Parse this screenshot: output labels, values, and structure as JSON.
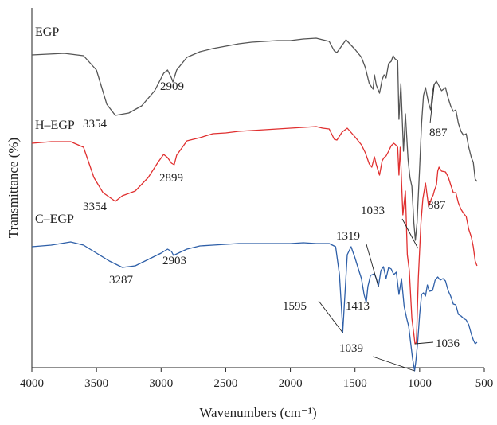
{
  "chart_data": {
    "type": "line",
    "xlabel": "Wavenumbers (cm⁻¹)",
    "ylabel": "Transmittance (%)",
    "xlim": [
      4000,
      500
    ],
    "x_reversed": true,
    "xticks": [
      4000,
      3500,
      3000,
      2500,
      2000,
      1500,
      1000,
      500
    ],
    "y_ticks_shown": false,
    "grid": false,
    "legend": "none (series labelled directly on the plot, upper-left of each trace)",
    "series": [
      {
        "name": "EGP",
        "color": "#555555",
        "points": [
          [
            4000,
            59
          ],
          [
            3750,
            57
          ],
          [
            3600,
            60
          ],
          [
            3500,
            78
          ],
          [
            3420,
            121
          ],
          [
            3354,
            135
          ],
          [
            3250,
            132
          ],
          [
            3150,
            123
          ],
          [
            3050,
            104
          ],
          [
            2980,
            82
          ],
          [
            2950,
            78
          ],
          [
            2920,
            88
          ],
          [
            2909,
            93
          ],
          [
            2880,
            78
          ],
          [
            2800,
            62
          ],
          [
            2700,
            55
          ],
          [
            2600,
            51
          ],
          [
            2500,
            48
          ],
          [
            2400,
            45
          ],
          [
            2300,
            43
          ],
          [
            2200,
            42
          ],
          [
            2100,
            41
          ],
          [
            2000,
            41
          ],
          [
            1900,
            39
          ],
          [
            1800,
            38
          ],
          [
            1750,
            40
          ],
          [
            1700,
            42
          ],
          [
            1660,
            54
          ],
          [
            1640,
            56
          ],
          [
            1600,
            47
          ],
          [
            1570,
            40
          ],
          [
            1500,
            52
          ],
          [
            1450,
            62
          ],
          [
            1420,
            75
          ],
          [
            1390,
            95
          ],
          [
            1360,
            102
          ],
          [
            1350,
            84
          ],
          [
            1335,
            97
          ],
          [
            1310,
            107
          ],
          [
            1290,
            90
          ],
          [
            1275,
            84
          ],
          [
            1260,
            88
          ],
          [
            1240,
            70
          ],
          [
            1220,
            67
          ],
          [
            1205,
            60
          ],
          [
            1190,
            64
          ],
          [
            1170,
            66
          ],
          [
            1160,
            140
          ],
          [
            1145,
            95
          ],
          [
            1125,
            180
          ],
          [
            1110,
            133
          ],
          [
            1090,
            190
          ],
          [
            1075,
            213
          ],
          [
            1060,
            224
          ],
          [
            1045,
            270
          ],
          [
            1033,
            292
          ],
          [
            1020,
            270
          ],
          [
            1000,
            200
          ],
          [
            985,
            145
          ],
          [
            970,
            110
          ],
          [
            955,
            100
          ],
          [
            930,
            120
          ],
          [
            915,
            128
          ],
          [
            900,
            105
          ],
          [
            887,
            96
          ],
          [
            870,
            92
          ],
          [
            850,
            98
          ],
          [
            830,
            104
          ],
          [
            800,
            100
          ],
          [
            780,
            113
          ],
          [
            760,
            123
          ],
          [
            740,
            130
          ],
          [
            720,
            128
          ],
          [
            700,
            145
          ],
          [
            680,
            155
          ],
          [
            660,
            160
          ],
          [
            640,
            158
          ],
          [
            620,
            175
          ],
          [
            600,
            188
          ],
          [
            585,
            194
          ],
          [
            570,
            215
          ],
          [
            556,
            218
          ]
        ]
      },
      {
        "name": "H–EGP",
        "color": "#e03030",
        "points": [
          [
            4000,
            170
          ],
          [
            3850,
            168
          ],
          [
            3700,
            168
          ],
          [
            3600,
            175
          ],
          [
            3520,
            213
          ],
          [
            3450,
            232
          ],
          [
            3380,
            240
          ],
          [
            3354,
            243
          ],
          [
            3300,
            236
          ],
          [
            3200,
            230
          ],
          [
            3100,
            213
          ],
          [
            3020,
            193
          ],
          [
            2980,
            184
          ],
          [
            2950,
            188
          ],
          [
            2920,
            195
          ],
          [
            2899,
            197
          ],
          [
            2880,
            185
          ],
          [
            2800,
            167
          ],
          [
            2700,
            163
          ],
          [
            2600,
            158
          ],
          [
            2500,
            157
          ],
          [
            2400,
            155
          ],
          [
            2300,
            154
          ],
          [
            2200,
            153
          ],
          [
            2100,
            152
          ],
          [
            2000,
            151
          ],
          [
            1900,
            150
          ],
          [
            1800,
            149
          ],
          [
            1750,
            151
          ],
          [
            1700,
            152
          ],
          [
            1660,
            165
          ],
          [
            1640,
            166
          ],
          [
            1600,
            156
          ],
          [
            1560,
            151
          ],
          [
            1500,
            162
          ],
          [
            1450,
            172
          ],
          [
            1420,
            182
          ],
          [
            1390,
            196
          ],
          [
            1370,
            200
          ],
          [
            1350,
            187
          ],
          [
            1335,
            197
          ],
          [
            1310,
            210
          ],
          [
            1290,
            192
          ],
          [
            1275,
            188
          ],
          [
            1260,
            186
          ],
          [
            1240,
            180
          ],
          [
            1220,
            173
          ],
          [
            1200,
            170
          ],
          [
            1185,
            172
          ],
          [
            1170,
            175
          ],
          [
            1160,
            210
          ],
          [
            1150,
            175
          ],
          [
            1130,
            260
          ],
          [
            1110,
            230
          ],
          [
            1095,
            310
          ],
          [
            1080,
            330
          ],
          [
            1060,
            390
          ],
          [
            1045,
            410
          ],
          [
            1036,
            422
          ],
          [
            1025,
            420
          ],
          [
            1010,
            340
          ],
          [
            990,
            270
          ],
          [
            975,
            240
          ],
          [
            955,
            220
          ],
          [
            930,
            250
          ],
          [
            910,
            240
          ],
          [
            895,
            235
          ],
          [
            887,
            230
          ],
          [
            870,
            222
          ],
          [
            860,
            205
          ],
          [
            850,
            200
          ],
          [
            830,
            205
          ],
          [
            800,
            206
          ],
          [
            780,
            212
          ],
          [
            760,
            222
          ],
          [
            740,
            232
          ],
          [
            720,
            232
          ],
          [
            700,
            245
          ],
          [
            680,
            253
          ],
          [
            660,
            258
          ],
          [
            640,
            262
          ],
          [
            620,
            278
          ],
          [
            600,
            288
          ],
          [
            585,
            300
          ],
          [
            570,
            318
          ],
          [
            556,
            324
          ]
        ]
      },
      {
        "name": "C–EGP",
        "color": "#2e5fa8",
        "points": [
          [
            4000,
            300
          ],
          [
            3850,
            298
          ],
          [
            3700,
            294
          ],
          [
            3600,
            298
          ],
          [
            3500,
            308
          ],
          [
            3400,
            318
          ],
          [
            3300,
            326
          ],
          [
            3200,
            324
          ],
          [
            3100,
            316
          ],
          [
            3000,
            308
          ],
          [
            2950,
            303
          ],
          [
            2920,
            306
          ],
          [
            2903,
            311
          ],
          [
            2880,
            309
          ],
          [
            2800,
            303
          ],
          [
            2700,
            299
          ],
          [
            2600,
            298
          ],
          [
            2500,
            297
          ],
          [
            2400,
            296
          ],
          [
            2300,
            296
          ],
          [
            2200,
            296
          ],
          [
            2100,
            296
          ],
          [
            2000,
            296
          ],
          [
            1900,
            295
          ],
          [
            1800,
            296
          ],
          [
            1700,
            296
          ],
          [
            1650,
            300
          ],
          [
            1620,
            335
          ],
          [
            1600,
            390
          ],
          [
            1595,
            408
          ],
          [
            1585,
            380
          ],
          [
            1560,
            310
          ],
          [
            1530,
            300
          ],
          [
            1500,
            314
          ],
          [
            1470,
            330
          ],
          [
            1450,
            340
          ],
          [
            1430,
            360
          ],
          [
            1413,
            370
          ],
          [
            1400,
            350
          ],
          [
            1380,
            336
          ],
          [
            1350,
            334
          ],
          [
            1335,
            340
          ],
          [
            1319,
            350
          ],
          [
            1300,
            330
          ],
          [
            1280,
            325
          ],
          [
            1260,
            340
          ],
          [
            1240,
            326
          ],
          [
            1220,
            328
          ],
          [
            1200,
            335
          ],
          [
            1180,
            332
          ],
          [
            1160,
            360
          ],
          [
            1140,
            340
          ],
          [
            1120,
            375
          ],
          [
            1100,
            390
          ],
          [
            1085,
            400
          ],
          [
            1070,
            420
          ],
          [
            1055,
            440
          ],
          [
            1045,
            450
          ],
          [
            1039,
            456
          ],
          [
            1030,
            445
          ],
          [
            1015,
            420
          ],
          [
            1000,
            385
          ],
          [
            985,
            360
          ],
          [
            970,
            358
          ],
          [
            955,
            362
          ],
          [
            940,
            348
          ],
          [
            925,
            356
          ],
          [
            900,
            355
          ],
          [
            880,
            342
          ],
          [
            860,
            338
          ],
          [
            840,
            342
          ],
          [
            820,
            340
          ],
          [
            800,
            343
          ],
          [
            780,
            355
          ],
          [
            760,
            362
          ],
          [
            740,
            372
          ],
          [
            720,
            373
          ],
          [
            700,
            385
          ],
          [
            680,
            387
          ],
          [
            660,
            390
          ],
          [
            640,
            392
          ],
          [
            620,
            398
          ],
          [
            600,
            410
          ],
          [
            585,
            417
          ],
          [
            570,
            422
          ],
          [
            556,
            420
          ]
        ]
      }
    ],
    "annotations": [
      {
        "text": "3354",
        "series": "EGP",
        "x": 3354
      },
      {
        "text": "2909",
        "series": "EGP",
        "x": 2909
      },
      {
        "text": "887",
        "series": "EGP",
        "x": 887
      },
      {
        "text": "3354",
        "series": "H–EGP",
        "x": 3354
      },
      {
        "text": "2899",
        "series": "H–EGP",
        "x": 2899
      },
      {
        "text": "1033",
        "series": "EGP",
        "x": 1033
      },
      {
        "text": "887",
        "series": "H–EGP",
        "x": 887
      },
      {
        "text": "1319",
        "series": "C–EGP",
        "x": 1319
      },
      {
        "text": "3287",
        "series": "C–EGP",
        "x": 3287
      },
      {
        "text": "2903",
        "series": "C–EGP",
        "x": 2903
      },
      {
        "text": "1595",
        "series": "C–EGP",
        "x": 1595
      },
      {
        "text": "1413",
        "series": "C–EGP",
        "x": 1413
      },
      {
        "text": "1039",
        "series": "C–EGP",
        "x": 1039
      },
      {
        "text": "1036",
        "series": "H–EGP",
        "x": 1036
      }
    ]
  }
}
